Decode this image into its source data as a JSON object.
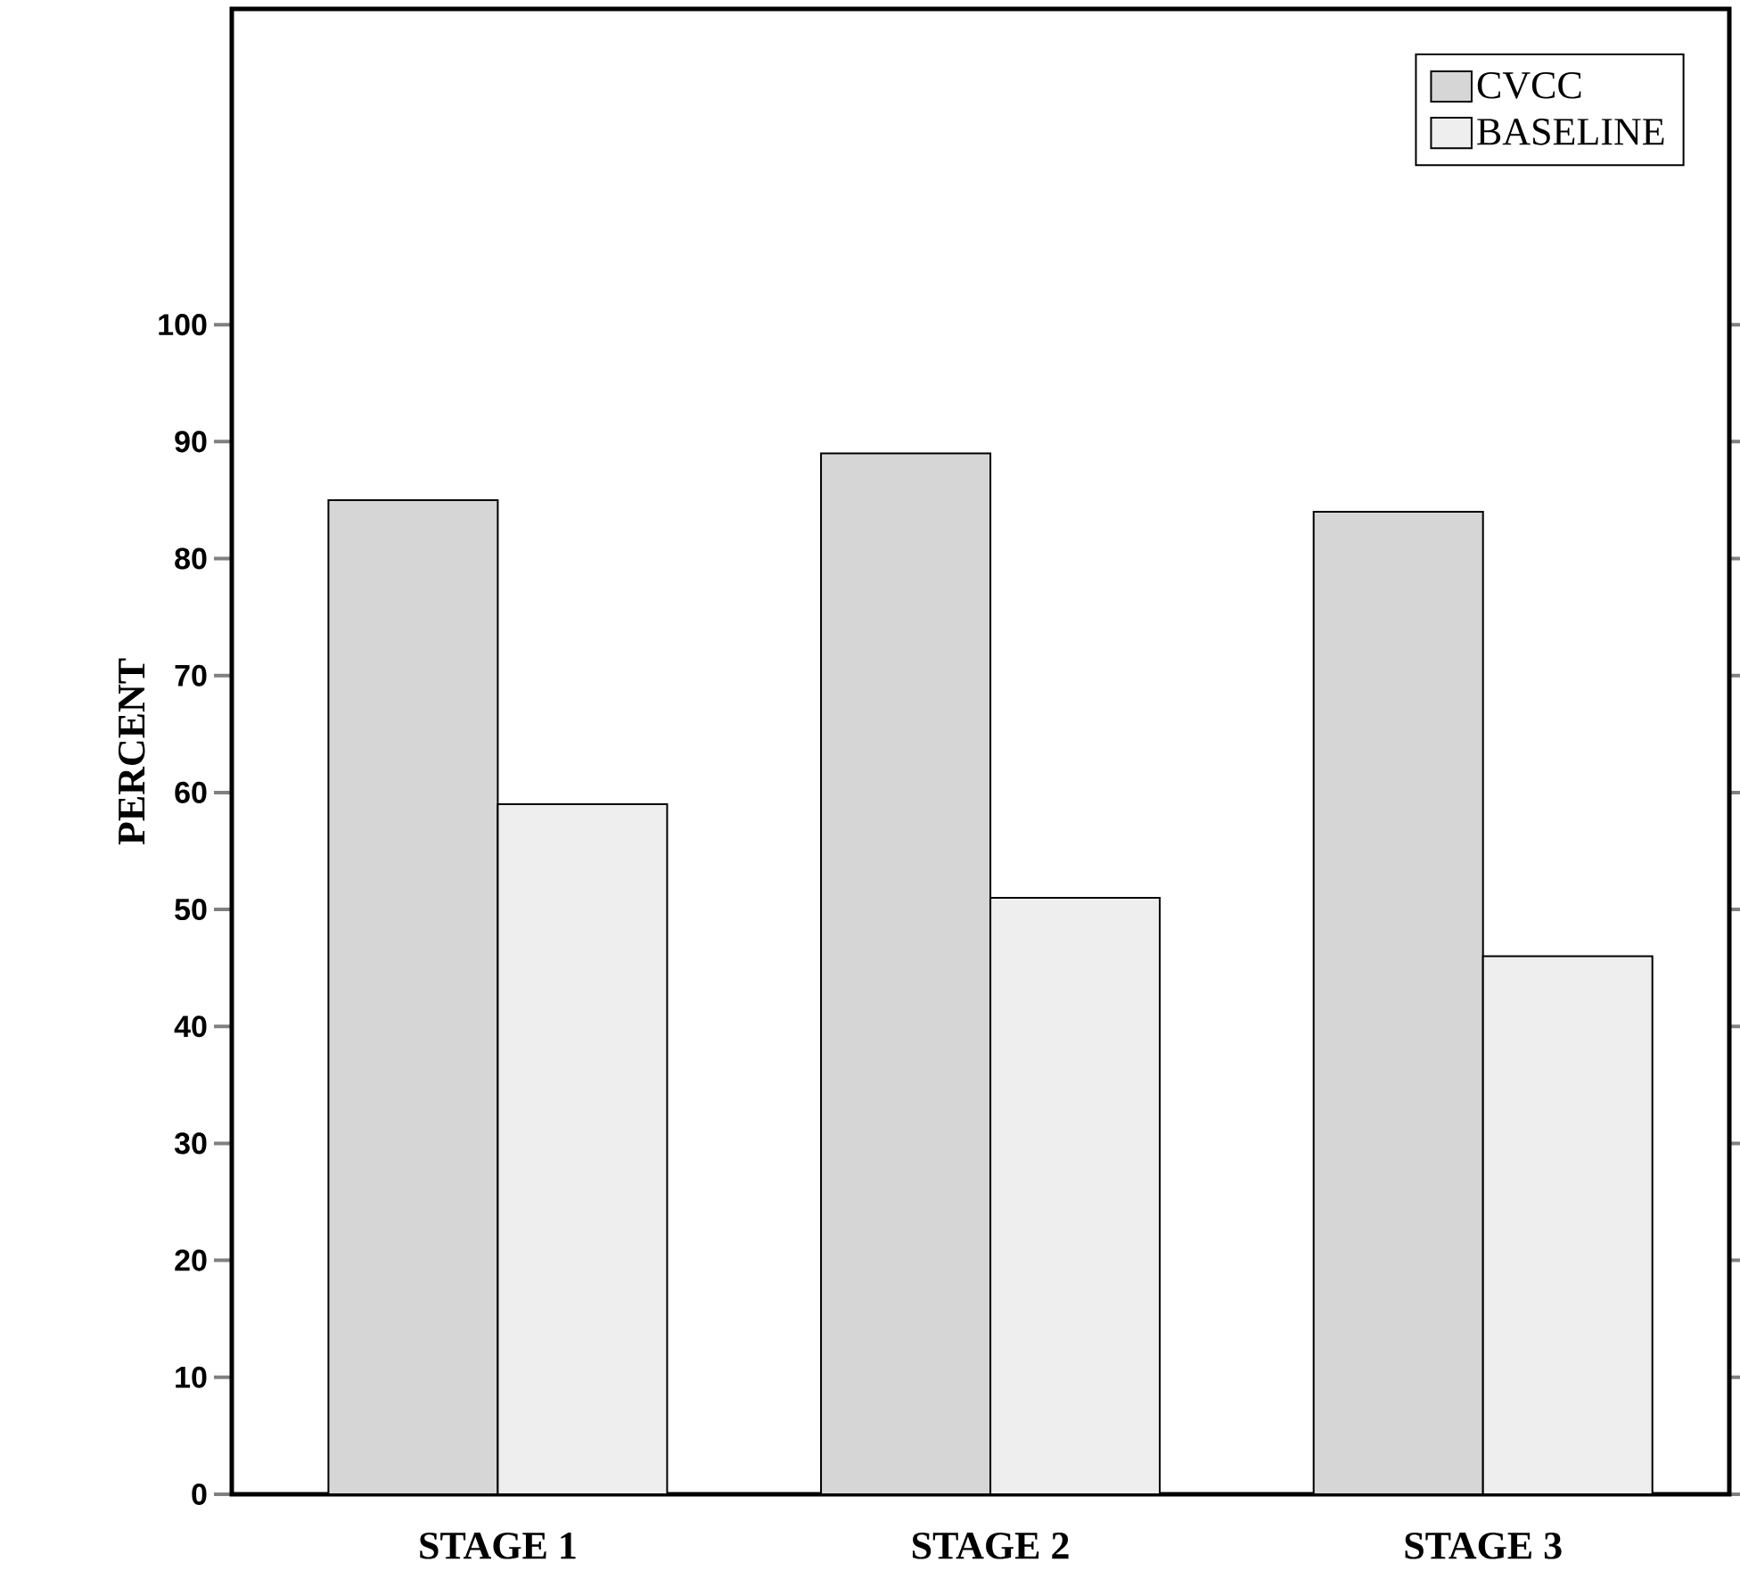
{
  "chart_data": {
    "type": "bar",
    "ylabel": "PERCENT",
    "categories": [
      "STAGE 1",
      "STAGE 2",
      "STAGE 3"
    ],
    "series": [
      {
        "name": "CVCC",
        "color": "#d6d6d6",
        "values": [
          85,
          89,
          84
        ]
      },
      {
        "name": "BASELINE",
        "color": "#eeeeee",
        "values": [
          59,
          51,
          46
        ]
      }
    ],
    "ylim": [
      0,
      127
    ],
    "yticks": [
      0,
      10,
      20,
      30,
      40,
      50,
      60,
      70,
      80,
      90,
      100
    ],
    "legend": "top right",
    "grid": false
  }
}
